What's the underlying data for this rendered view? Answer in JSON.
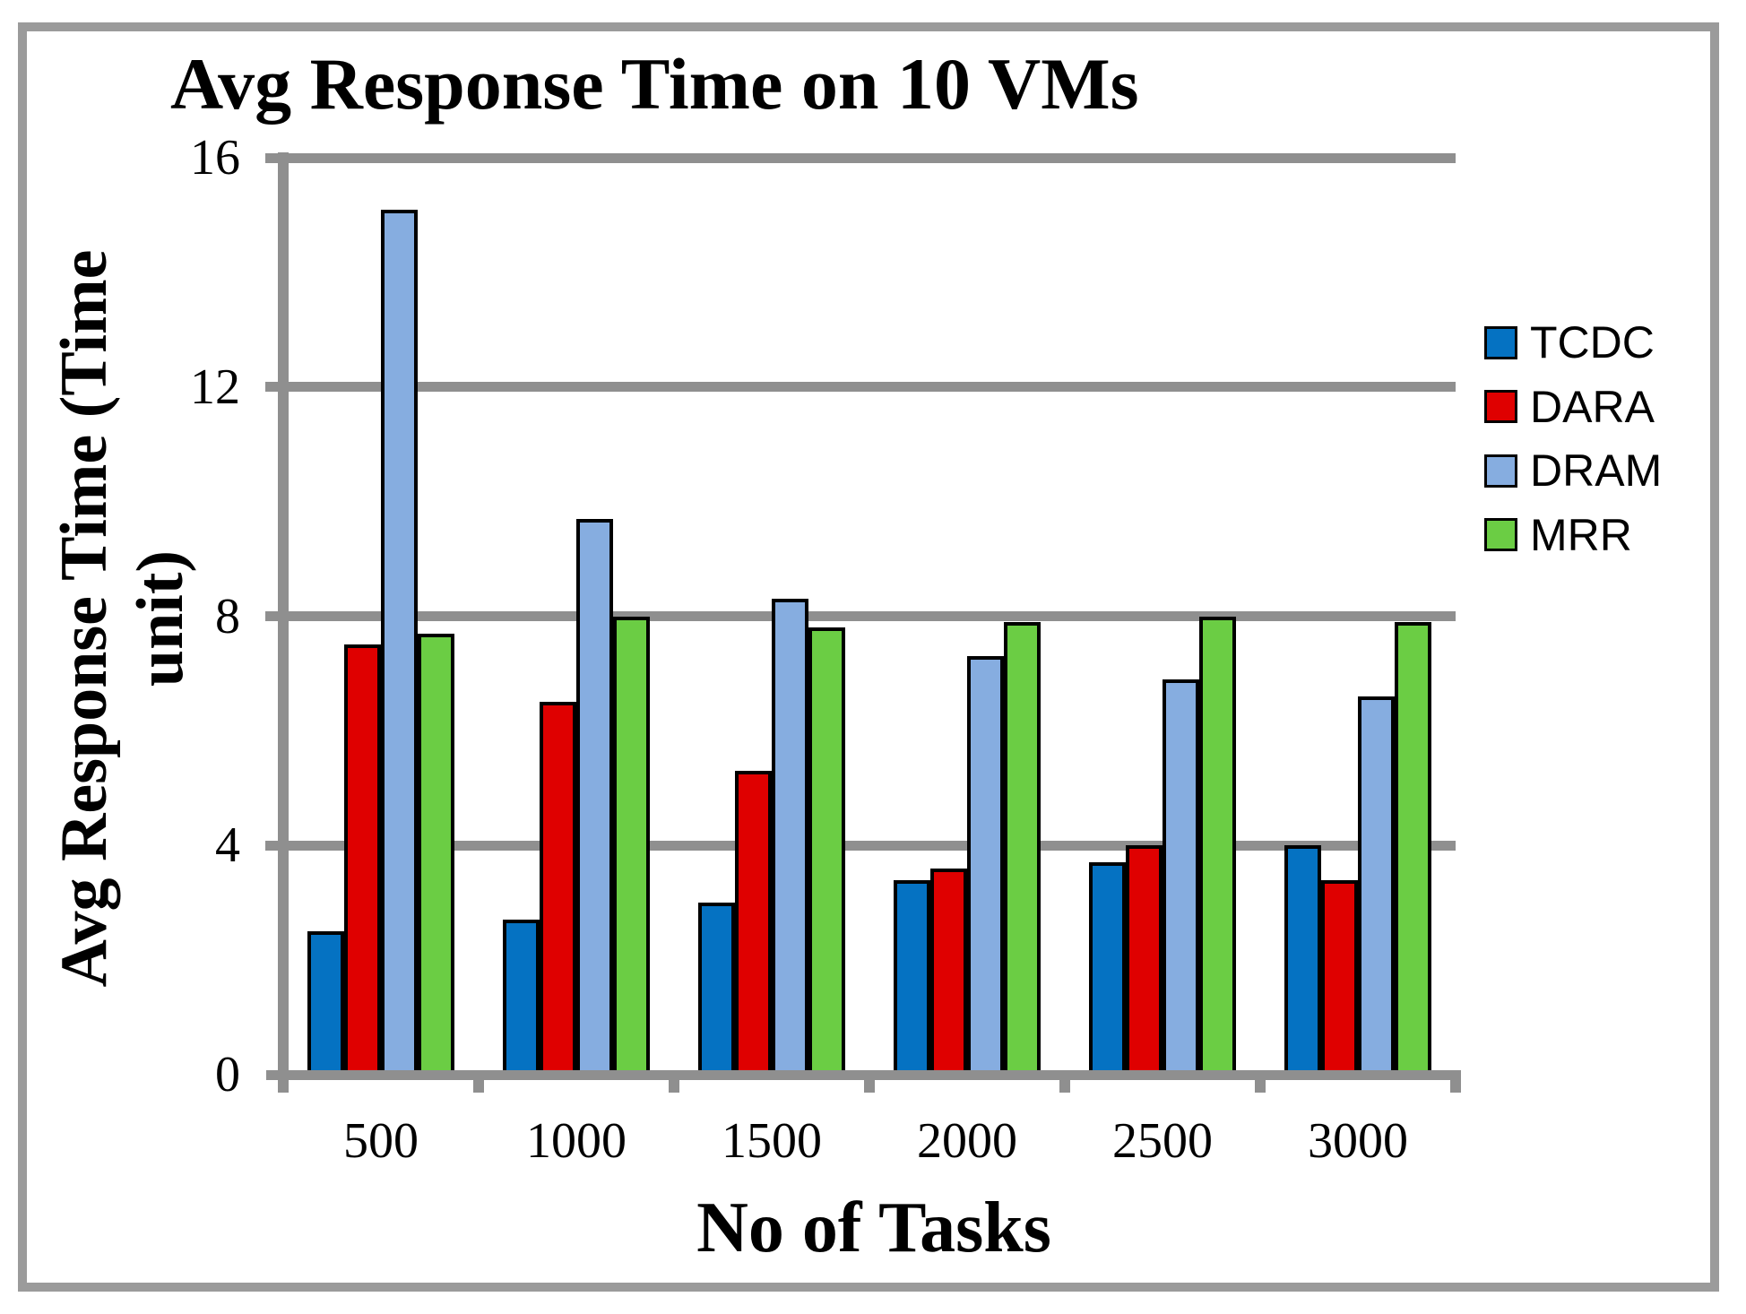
{
  "chart_data": {
    "type": "bar",
    "title": "Avg Response Time on 10 VMs",
    "xlabel": "No of Tasks",
    "ylabel": "Avg Response Time (Time unit)",
    "ylabel_lines": [
      "Avg Response Time (Time",
      "unit)"
    ],
    "categories": [
      "500",
      "1000",
      "1500",
      "2000",
      "2500",
      "3000"
    ],
    "series": [
      {
        "name": "TCDC",
        "color": "#0572C2",
        "values": [
          2.5,
          2.7,
          3.0,
          3.4,
          3.7,
          4.0
        ]
      },
      {
        "name": "DARA",
        "color": "#DF0000",
        "values": [
          7.5,
          6.5,
          5.3,
          3.6,
          4.0,
          3.4
        ]
      },
      {
        "name": "DRAM",
        "color": "#86ADE0",
        "values": [
          15.1,
          9.7,
          8.3,
          7.3,
          6.9,
          6.6
        ]
      },
      {
        "name": "MRR",
        "color": "#6BCD44",
        "values": [
          7.7,
          8.0,
          7.8,
          7.9,
          8.0,
          7.9
        ]
      }
    ],
    "y_ticks": [
      16,
      12,
      8,
      4,
      0
    ],
    "ylim": [
      0,
      16
    ],
    "grid": true,
    "legend_position": "right"
  },
  "colors": {
    "gridline": "#8f8f8f",
    "axis": "#8f8f8f",
    "frame": "#9b9b9b",
    "background": "#ffffff",
    "text": "#000000"
  }
}
